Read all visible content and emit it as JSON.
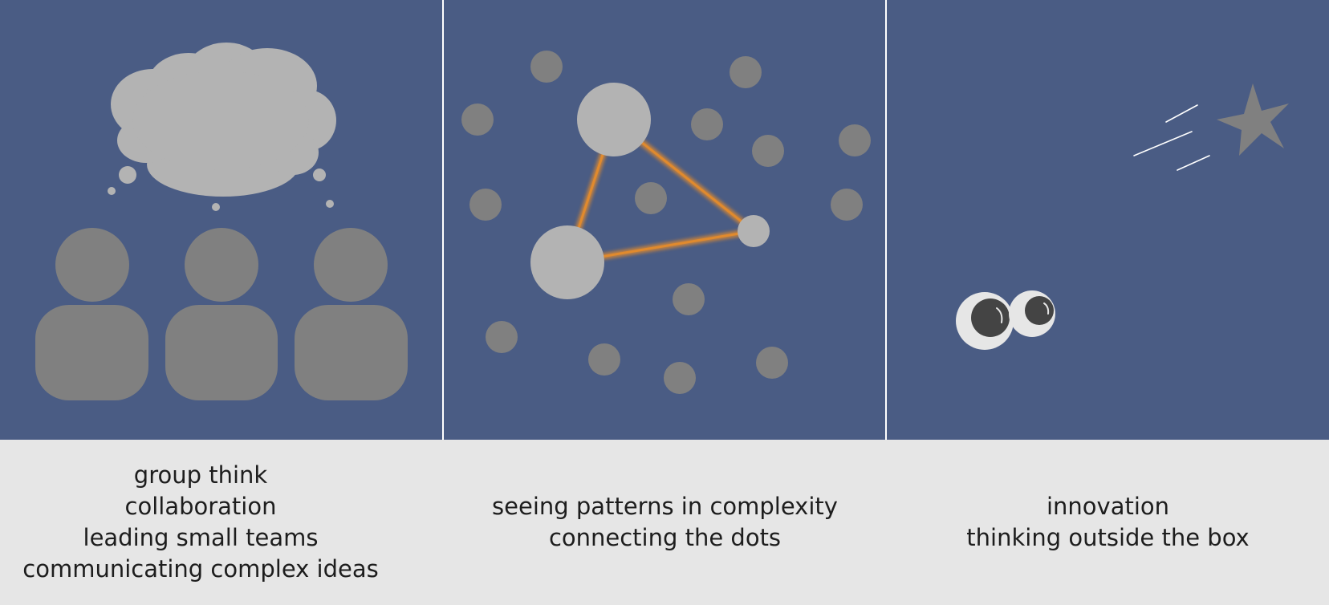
{
  "colors": {
    "panel_bg": "#4a5c84",
    "caption_bg": "#e6e6e6",
    "person": "#808080",
    "cloud": "#b3b3b3",
    "dot_dark": "#808080",
    "dot_light": "#b3b3b3",
    "connector": "#e08a2e",
    "star": "#808080",
    "eye_white": "#e6e6e6",
    "pupil": "#444444"
  },
  "panels": [
    {
      "icons": [
        "thought-cloud-icon",
        "person-icon"
      ],
      "caption_lines": [
        "group think",
        "collaboration",
        "leading small teams",
        "communicating complex ideas"
      ]
    },
    {
      "icons": [
        "connected-dots-icon"
      ],
      "caption_lines": [
        "seeing patterns in complexity",
        "connecting the dots"
      ]
    },
    {
      "icons": [
        "shooting-star-icon",
        "googly-eyes-icon"
      ],
      "caption_lines": [
        "innovation",
        "thinking outside the box"
      ]
    }
  ]
}
